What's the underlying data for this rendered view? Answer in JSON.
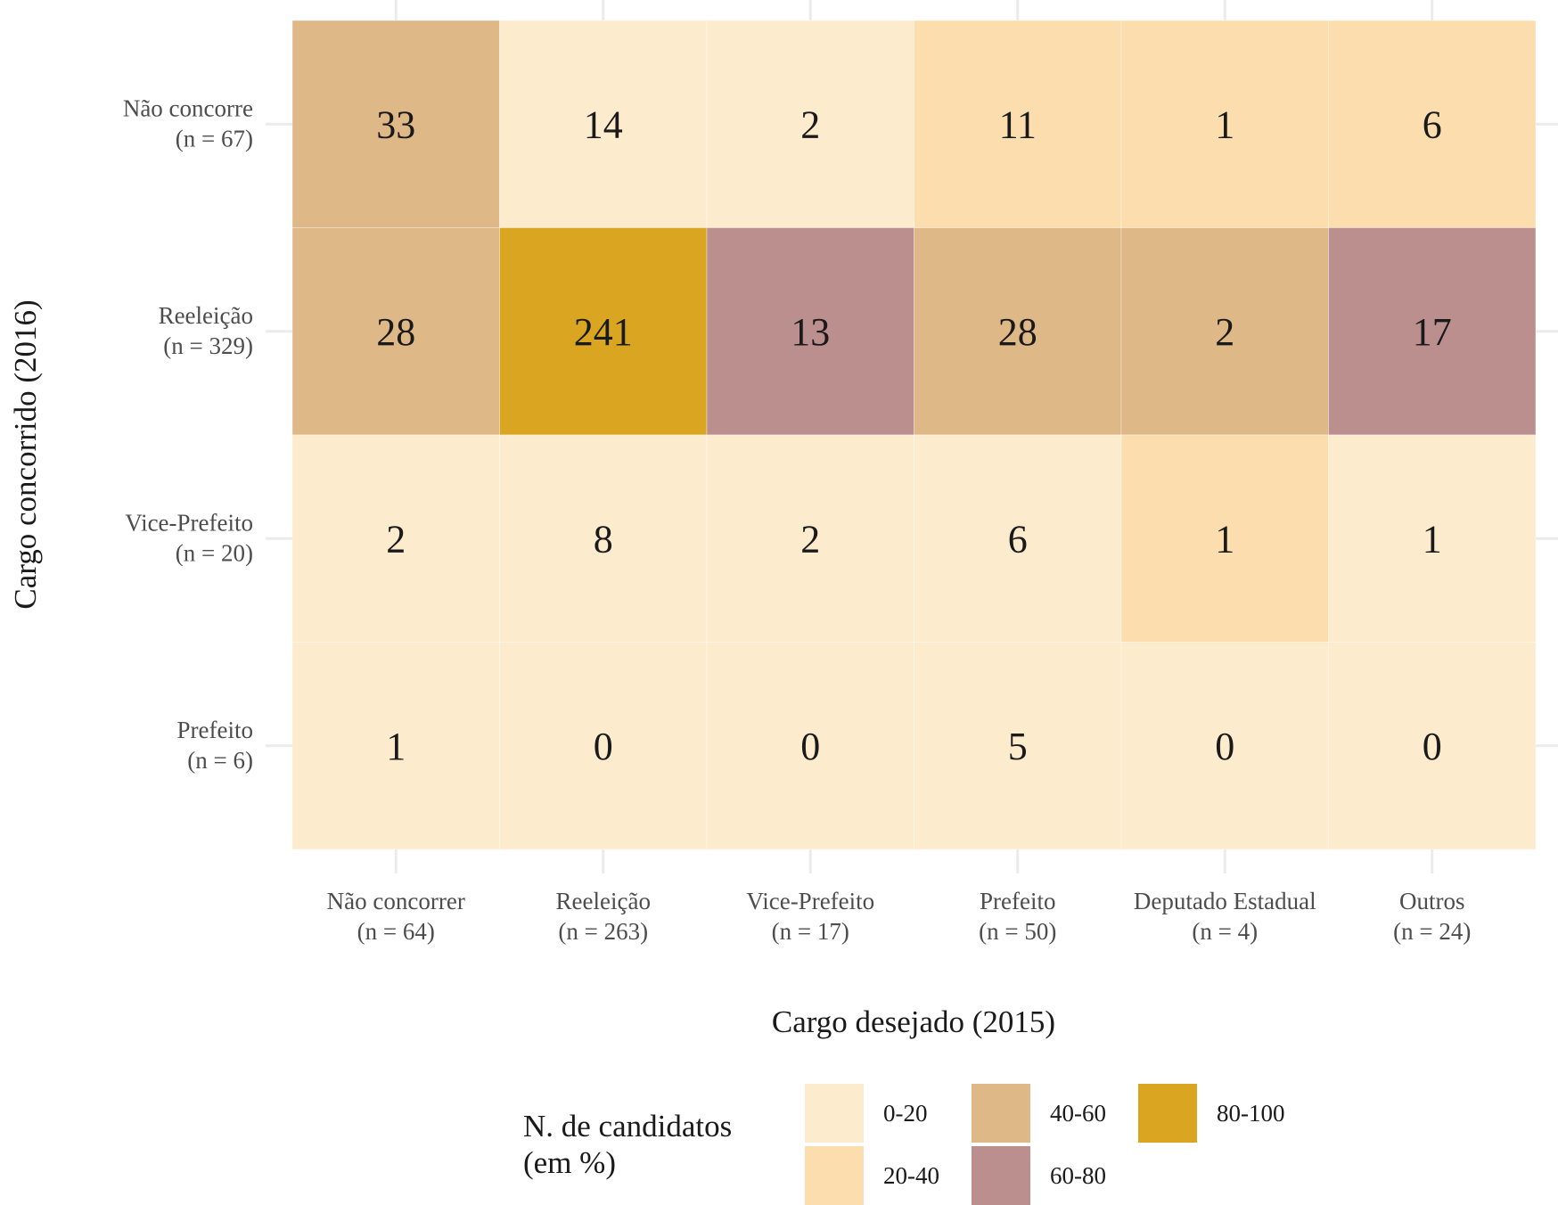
{
  "chart_data": {
    "type": "heatmap",
    "xlabel": "Cargo desejado (2015)",
    "ylabel": "Cargo concorrido (2016)",
    "columns": [
      {
        "name": "Não concorrer",
        "n": "(n = 64)"
      },
      {
        "name": "Reeleição",
        "n": "(n = 263)"
      },
      {
        "name": "Vice-Prefeito",
        "n": "(n = 17)"
      },
      {
        "name": "Prefeito",
        "n": "(n = 50)"
      },
      {
        "name": "Deputado Estadual",
        "n": "(n = 4)"
      },
      {
        "name": "Outros",
        "n": "(n = 24)"
      }
    ],
    "rows": [
      {
        "name": "Não concorre",
        "n": "(n = 67)"
      },
      {
        "name": "Reeleição",
        "n": "(n = 329)"
      },
      {
        "name": "Vice-Prefeito",
        "n": "(n = 20)"
      },
      {
        "name": "Prefeito",
        "n": "(n = 6)"
      }
    ],
    "values": [
      [
        33,
        14,
        2,
        11,
        1,
        6
      ],
      [
        28,
        241,
        13,
        28,
        2,
        17
      ],
      [
        2,
        8,
        2,
        6,
        1,
        1
      ],
      [
        1,
        0,
        0,
        5,
        0,
        0
      ]
    ],
    "categories": [
      [
        "40-60",
        "0-20",
        "0-20",
        "20-40",
        "20-40",
        "20-40"
      ],
      [
        "40-60",
        "80-100",
        "60-80",
        "40-60",
        "40-60",
        "60-80"
      ],
      [
        "0-20",
        "0-20",
        "0-20",
        "0-20",
        "20-40",
        "0-20"
      ],
      [
        "0-20",
        "0-20",
        "0-20",
        "0-20",
        "0-20",
        "0-20"
      ]
    ],
    "legend": {
      "title_lines": [
        "N.  de  candidatos",
        "(em  %)"
      ],
      "items": [
        {
          "label": "0-20",
          "color": "#FDEBCD"
        },
        {
          "label": "20-40",
          "color": "#FCDEAE"
        },
        {
          "label": "40-60",
          "color": "#DEB887"
        },
        {
          "label": "60-80",
          "color": "#BC8F8F"
        },
        {
          "label": "80-100",
          "color": "#DAA520"
        }
      ],
      "position": "bottom"
    },
    "grid": true
  }
}
